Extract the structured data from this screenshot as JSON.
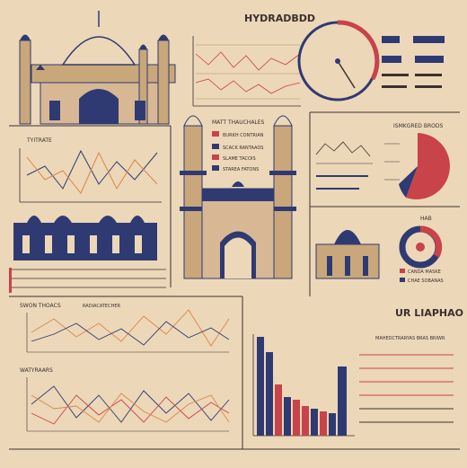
{
  "title": "HYDRADBDD",
  "labels": {
    "left_chart_top": "TYITRATE",
    "center_block": "MATT THAUCHALES",
    "center_list_1": "BURKH CONTRIAN",
    "center_list_2": "SCACK RANTAAOS",
    "center_list_3": "SLAME TACOIS",
    "center_list_4": "STAREA FATONS",
    "right_mid_header": "ISMKGRED BRODS",
    "right_pie_tag": "HAB",
    "right_arch_1": "CANDA MASKE",
    "right_arch_2": "CHAE SOBANAS",
    "left_bottom_header_1": "SWON THOACS",
    "left_bottom_header_2": "RADIACATECHER",
    "left_bottom_header_3": "WATYRAARS",
    "bottom_right_title": "UR LIAPHAO",
    "bottom_right_subtitle": "MAHEDCTRARYAS BRAS BRIWR"
  },
  "colors": {
    "background": "#ecd7b8",
    "navy": "#2f3a72",
    "red": "#c8434a",
    "orange": "#d9864a",
    "tan": "#c9a77b",
    "ink": "#3b3030"
  }
}
